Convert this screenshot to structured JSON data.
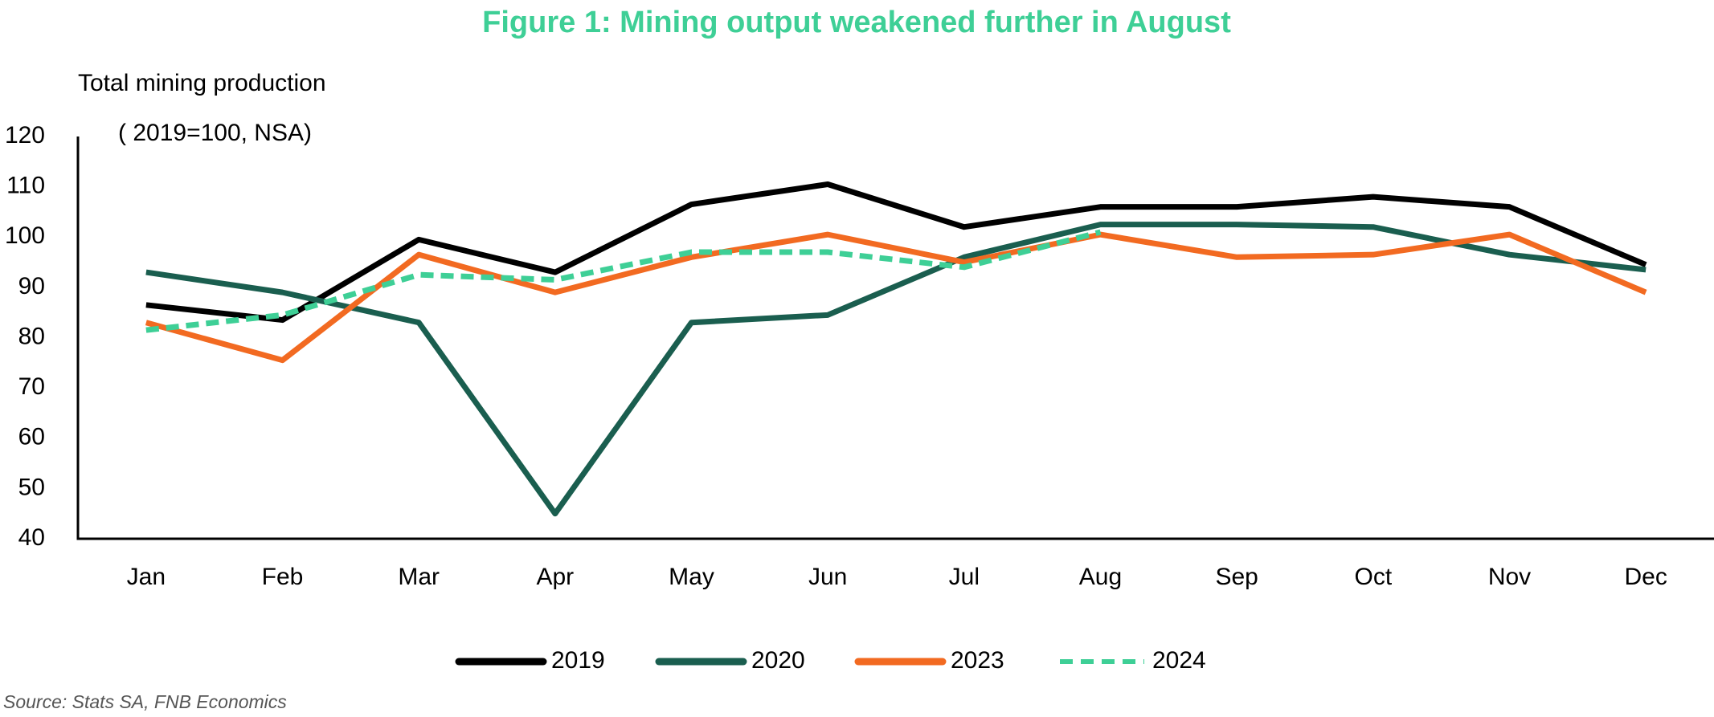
{
  "chart_data": {
    "type": "line",
    "title": "Figure 1: Mining output weakened further in August",
    "y_label": "Total mining production",
    "y_sublabel": "( 2019=100, NSA)",
    "source": "Source: Stats SA, FNB Economics",
    "categories": [
      "Jan",
      "Feb",
      "Mar",
      "Apr",
      "May",
      "Jun",
      "Jul",
      "Aug",
      "Sep",
      "Oct",
      "Nov",
      "Dec"
    ],
    "series": [
      {
        "name": "2019",
        "color": "#000000",
        "dashed": false,
        "values": [
          86.5,
          83.5,
          99.5,
          93,
          106.5,
          110.5,
          102,
          106,
          106,
          108,
          106,
          94.5
        ]
      },
      {
        "name": "2020",
        "color": "#1a5e4f",
        "dashed": false,
        "values": [
          93,
          89,
          83,
          45,
          83,
          84.5,
          96,
          102.5,
          102.5,
          102,
          96.5,
          93.5
        ]
      },
      {
        "name": "2023",
        "color": "#f26a21",
        "dashed": false,
        "values": [
          83,
          75.5,
          96.5,
          89,
          96,
          100.5,
          95,
          100.5,
          96,
          96.5,
          100.5,
          89
        ]
      },
      {
        "name": "2024",
        "color": "#3ecf96",
        "dashed": true,
        "values": [
          81.5,
          84.5,
          92.5,
          91.5,
          97,
          97,
          94,
          101,
          null,
          null,
          null,
          null
        ]
      }
    ],
    "ylim": [
      40,
      120
    ],
    "yticks": [
      40,
      50,
      60,
      70,
      80,
      90,
      100,
      110,
      120
    ],
    "grid": false,
    "legend": "bottom"
  }
}
